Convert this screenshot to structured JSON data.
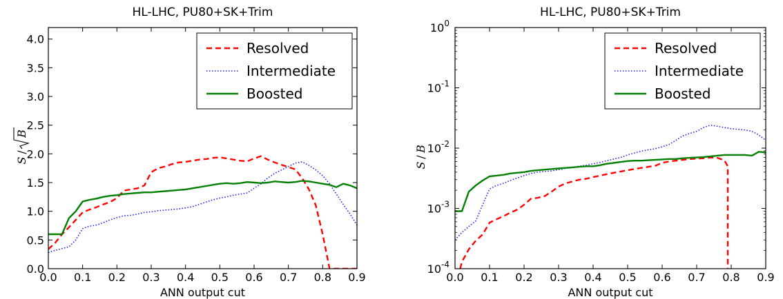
{
  "chart_data": [
    {
      "type": "line",
      "title": "HL-LHC, PU80+SK+Trim",
      "xlabel": "ANN output cut",
      "ylabel": "S/√B",
      "ylabel_parts": {
        "s": "S",
        "slash": "/",
        "b": "B"
      },
      "xlim": [
        0,
        0.9
      ],
      "ylim": [
        0,
        4.2
      ],
      "yscale": "linear",
      "grid": false,
      "legend_position": "top-right",
      "xticks": [
        "0.0",
        "0.1",
        "0.2",
        "0.3",
        "0.4",
        "0.5",
        "0.6",
        "0.7",
        "0.8",
        "0.9"
      ],
      "xtick_values": [
        0,
        0.1,
        0.2,
        0.3,
        0.4,
        0.5,
        0.6,
        0.7,
        0.8,
        0.9
      ],
      "yticks": [
        "0.0",
        "0.5",
        "1.0",
        "1.5",
        "2.0",
        "2.5",
        "3.0",
        "3.5",
        "4.0"
      ],
      "ytick_values": [
        0,
        0.5,
        1.0,
        1.5,
        2.0,
        2.5,
        3.0,
        3.5,
        4.0
      ],
      "series": [
        {
          "name": "Resolved",
          "color": "#ff0000",
          "style": "dashed",
          "x": [
            0.0,
            0.02,
            0.04,
            0.06,
            0.08,
            0.1,
            0.12,
            0.14,
            0.16,
            0.18,
            0.2,
            0.22,
            0.24,
            0.26,
            0.28,
            0.3,
            0.32,
            0.34,
            0.36,
            0.38,
            0.4,
            0.42,
            0.44,
            0.46,
            0.48,
            0.5,
            0.52,
            0.54,
            0.56,
            0.58,
            0.6,
            0.62,
            0.64,
            0.66,
            0.68,
            0.7,
            0.72,
            0.74,
            0.76,
            0.78,
            0.8,
            0.82,
            0.84,
            0.86,
            0.88,
            0.9
          ],
          "y": [
            0.34,
            0.45,
            0.6,
            0.72,
            0.85,
            0.98,
            1.03,
            1.07,
            1.12,
            1.16,
            1.23,
            1.36,
            1.38,
            1.4,
            1.45,
            1.68,
            1.75,
            1.78,
            1.82,
            1.85,
            1.86,
            1.88,
            1.9,
            1.91,
            1.93,
            1.94,
            1.92,
            1.9,
            1.88,
            1.87,
            1.92,
            1.96,
            1.9,
            1.85,
            1.81,
            1.77,
            1.73,
            1.58,
            1.38,
            1.1,
            0.6,
            0.0,
            0.0,
            0.0,
            0.0,
            0.0
          ]
        },
        {
          "name": "Intermediate",
          "color": "#1a1aff",
          "style": "dotted",
          "x": [
            0.0,
            0.02,
            0.04,
            0.06,
            0.08,
            0.1,
            0.12,
            0.14,
            0.16,
            0.18,
            0.2,
            0.22,
            0.24,
            0.26,
            0.28,
            0.3,
            0.32,
            0.34,
            0.36,
            0.38,
            0.4,
            0.42,
            0.44,
            0.46,
            0.48,
            0.5,
            0.52,
            0.54,
            0.56,
            0.58,
            0.6,
            0.62,
            0.64,
            0.66,
            0.68,
            0.7,
            0.72,
            0.74,
            0.76,
            0.78,
            0.8,
            0.82,
            0.84,
            0.86,
            0.88,
            0.9
          ],
          "y": [
            0.28,
            0.32,
            0.35,
            0.38,
            0.5,
            0.7,
            0.74,
            0.76,
            0.8,
            0.85,
            0.89,
            0.92,
            0.93,
            0.95,
            0.98,
            0.99,
            1.01,
            1.02,
            1.03,
            1.04,
            1.06,
            1.08,
            1.12,
            1.16,
            1.2,
            1.23,
            1.25,
            1.28,
            1.3,
            1.32,
            1.4,
            1.48,
            1.58,
            1.66,
            1.72,
            1.78,
            1.84,
            1.86,
            1.8,
            1.72,
            1.62,
            1.48,
            1.3,
            1.12,
            0.95,
            0.76
          ]
        },
        {
          "name": "Boosted",
          "color": "#007f00",
          "style": "solid",
          "x": [
            0.0,
            0.02,
            0.04,
            0.06,
            0.08,
            0.1,
            0.12,
            0.14,
            0.16,
            0.18,
            0.2,
            0.22,
            0.24,
            0.26,
            0.28,
            0.3,
            0.32,
            0.34,
            0.36,
            0.38,
            0.4,
            0.42,
            0.44,
            0.46,
            0.48,
            0.5,
            0.52,
            0.54,
            0.56,
            0.58,
            0.6,
            0.62,
            0.64,
            0.66,
            0.68,
            0.7,
            0.72,
            0.74,
            0.76,
            0.78,
            0.8,
            0.82,
            0.84,
            0.86,
            0.88,
            0.9
          ],
          "y": [
            0.6,
            0.6,
            0.6,
            0.88,
            1.0,
            1.17,
            1.2,
            1.22,
            1.25,
            1.27,
            1.28,
            1.3,
            1.31,
            1.32,
            1.33,
            1.33,
            1.34,
            1.35,
            1.36,
            1.37,
            1.38,
            1.4,
            1.42,
            1.44,
            1.46,
            1.48,
            1.49,
            1.48,
            1.49,
            1.51,
            1.5,
            1.49,
            1.5,
            1.52,
            1.51,
            1.5,
            1.51,
            1.53,
            1.52,
            1.5,
            1.48,
            1.46,
            1.42,
            1.48,
            1.45,
            1.4
          ]
        }
      ]
    },
    {
      "type": "line",
      "title": "HL-LHC, PU80+SK+Trim",
      "xlabel": "ANN output cut",
      "ylabel": "S/B",
      "ylabel_parts": {
        "s": "S",
        "slash": "/",
        "b": "B"
      },
      "xlim": [
        0,
        0.9
      ],
      "ylim": [
        0.0001,
        1
      ],
      "yscale": "log",
      "grid": false,
      "legend_position": "top-right",
      "xticks": [
        "0.0",
        "0.1",
        "0.2",
        "0.3",
        "0.4",
        "0.5",
        "0.6",
        "0.7",
        "0.8",
        "0.9"
      ],
      "xtick_values": [
        0,
        0.1,
        0.2,
        0.3,
        0.4,
        0.5,
        0.6,
        0.7,
        0.8,
        0.9
      ],
      "yticks": [
        {
          "base": "10",
          "exp": "-4"
        },
        {
          "base": "10",
          "exp": "-3"
        },
        {
          "base": "10",
          "exp": "-2"
        },
        {
          "base": "10",
          "exp": "-1"
        },
        {
          "base": "10",
          "exp": "0"
        }
      ],
      "ytick_values": [
        0.0001,
        0.001,
        0.01,
        0.1,
        1
      ],
      "series": [
        {
          "name": "Resolved",
          "color": "#ff0000",
          "style": "dashed",
          "x": [
            0.015,
            0.02,
            0.04,
            0.06,
            0.08,
            0.1,
            0.12,
            0.14,
            0.16,
            0.18,
            0.2,
            0.22,
            0.24,
            0.26,
            0.28,
            0.3,
            0.32,
            0.34,
            0.36,
            0.38,
            0.4,
            0.42,
            0.44,
            0.46,
            0.48,
            0.5,
            0.52,
            0.54,
            0.56,
            0.58,
            0.6,
            0.62,
            0.64,
            0.66,
            0.68,
            0.7,
            0.72,
            0.74,
            0.76,
            0.78,
            0.79,
            0.79
          ],
          "y": [
            0.0001,
            0.00013,
            0.00021,
            0.00029,
            0.00037,
            0.00058,
            0.00066,
            0.00074,
            0.00085,
            0.00095,
            0.00115,
            0.00145,
            0.0015,
            0.0016,
            0.0019,
            0.0023,
            0.0026,
            0.0028,
            0.003,
            0.0031,
            0.0033,
            0.0035,
            0.0037,
            0.0039,
            0.0041,
            0.0043,
            0.0045,
            0.0047,
            0.0049,
            0.0051,
            0.0057,
            0.006,
            0.0062,
            0.0064,
            0.0066,
            0.0067,
            0.0068,
            0.007,
            0.0069,
            0.0063,
            0.005,
            0.0001
          ]
        },
        {
          "name": "Intermediate",
          "color": "#1a1aff",
          "style": "dotted",
          "x": [
            0.0,
            0.02,
            0.04,
            0.06,
            0.08,
            0.1,
            0.12,
            0.14,
            0.16,
            0.18,
            0.2,
            0.22,
            0.24,
            0.26,
            0.28,
            0.3,
            0.32,
            0.34,
            0.36,
            0.38,
            0.4,
            0.42,
            0.44,
            0.46,
            0.48,
            0.5,
            0.52,
            0.54,
            0.56,
            0.58,
            0.6,
            0.62,
            0.64,
            0.66,
            0.68,
            0.7,
            0.72,
            0.74,
            0.76,
            0.78,
            0.8,
            0.82,
            0.84,
            0.86,
            0.88,
            0.9
          ],
          "y": [
            0.0003,
            0.0004,
            0.0005,
            0.00062,
            0.00115,
            0.0021,
            0.0024,
            0.0026,
            0.0029,
            0.0032,
            0.0035,
            0.0038,
            0.004,
            0.0041,
            0.0042,
            0.0044,
            0.0046,
            0.0048,
            0.005,
            0.0052,
            0.0055,
            0.0058,
            0.0062,
            0.0066,
            0.007,
            0.0077,
            0.0083,
            0.0089,
            0.0094,
            0.0098,
            0.0105,
            0.0115,
            0.0135,
            0.016,
            0.0175,
            0.019,
            0.022,
            0.024,
            0.023,
            0.022,
            0.021,
            0.0205,
            0.02,
            0.019,
            0.0165,
            0.0135
          ]
        },
        {
          "name": "Boosted",
          "color": "#007f00",
          "style": "solid",
          "x": [
            0.0,
            0.02,
            0.04,
            0.06,
            0.08,
            0.1,
            0.12,
            0.14,
            0.16,
            0.18,
            0.2,
            0.22,
            0.24,
            0.26,
            0.28,
            0.3,
            0.32,
            0.34,
            0.36,
            0.38,
            0.4,
            0.42,
            0.44,
            0.46,
            0.48,
            0.5,
            0.52,
            0.54,
            0.56,
            0.58,
            0.6,
            0.62,
            0.64,
            0.66,
            0.68,
            0.7,
            0.72,
            0.74,
            0.76,
            0.78,
            0.8,
            0.82,
            0.84,
            0.86,
            0.88,
            0.9
          ],
          "y": [
            0.0009,
            0.0009,
            0.0019,
            0.0024,
            0.0029,
            0.0034,
            0.0035,
            0.0036,
            0.0038,
            0.0039,
            0.004,
            0.0042,
            0.0043,
            0.0044,
            0.0045,
            0.0046,
            0.0047,
            0.0048,
            0.0049,
            0.005,
            0.005,
            0.0052,
            0.0055,
            0.0057,
            0.0059,
            0.0061,
            0.0062,
            0.0062,
            0.0063,
            0.0064,
            0.0065,
            0.0066,
            0.0066,
            0.0068,
            0.0069,
            0.007,
            0.0071,
            0.0073,
            0.0075,
            0.0077,
            0.0077,
            0.0077,
            0.0077,
            0.0075,
            0.0087,
            0.0085
          ]
        }
      ]
    }
  ]
}
